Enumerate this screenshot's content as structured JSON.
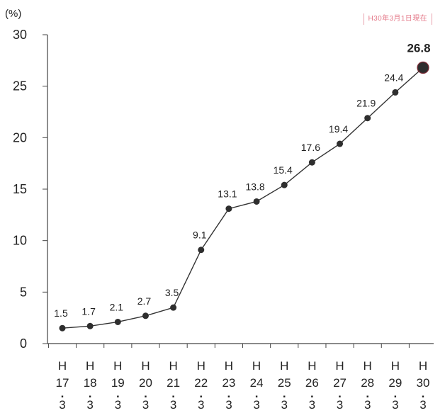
{
  "note": "H30年3月1日現在",
  "colors": {
    "line": "#333333",
    "point": "#2e2e2e",
    "last_point_fill": "#f07a8c",
    "note_text": "#e47a8a"
  },
  "chart_data": {
    "type": "line",
    "title": "",
    "xlabel": "",
    "ylabel": "(%)",
    "ylim": [
      0,
      30
    ],
    "yticks": [
      0,
      5,
      10,
      15,
      20,
      25,
      30
    ],
    "grid": false,
    "categories": [
      "H17.3",
      "H18.3",
      "H19.3",
      "H20.3",
      "H21.3",
      "H22.3",
      "H23.3",
      "H24.3",
      "H25.3",
      "H26.3",
      "H27.3",
      "H28.3",
      "H29.3",
      "H30.3"
    ],
    "x_tick_parts": [
      [
        "H",
        "17",
        ".",
        "3"
      ],
      [
        "H",
        "18",
        ".",
        "3"
      ],
      [
        "H",
        "19",
        ".",
        "3"
      ],
      [
        "H",
        "20",
        ".",
        "3"
      ],
      [
        "H",
        "21",
        ".",
        "3"
      ],
      [
        "H",
        "22",
        ".",
        "3"
      ],
      [
        "H",
        "23",
        ".",
        "3"
      ],
      [
        "H",
        "24",
        ".",
        "3"
      ],
      [
        "H",
        "25",
        ".",
        "3"
      ],
      [
        "H",
        "26",
        ".",
        "3"
      ],
      [
        "H",
        "27",
        ".",
        "3"
      ],
      [
        "H",
        "28",
        ".",
        "3"
      ],
      [
        "H",
        "29",
        ".",
        "3"
      ],
      [
        "H",
        "30",
        ".",
        "3"
      ]
    ],
    "values": [
      1.5,
      1.7,
      2.1,
      2.7,
      3.5,
      9.1,
      13.1,
      13.8,
      15.4,
      17.6,
      19.4,
      21.9,
      24.4,
      26.8
    ],
    "data_labels": [
      "1.5",
      "1.7",
      "2.1",
      "2.7",
      "3.5",
      "9.1",
      "13.1",
      "13.8",
      "15.4",
      "17.6",
      "19.4",
      "21.9",
      "24.4",
      "26.8"
    ]
  }
}
